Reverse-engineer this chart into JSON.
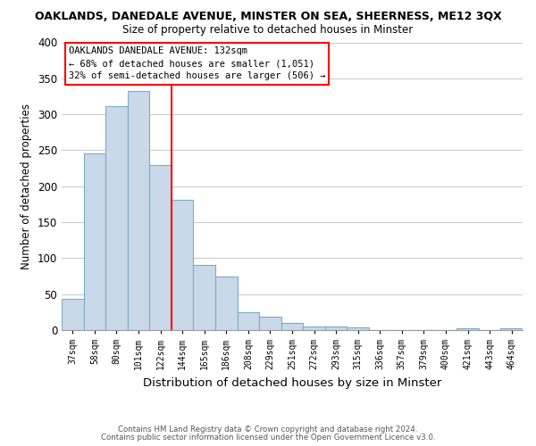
{
  "title_line1": "OAKLANDS, DANEDALE AVENUE, MINSTER ON SEA, SHEERNESS, ME12 3QX",
  "title_line2": "Size of property relative to detached houses in Minster",
  "xlabel": "Distribution of detached houses by size in Minster",
  "ylabel": "Number of detached properties",
  "bin_labels": [
    "37sqm",
    "58sqm",
    "80sqm",
    "101sqm",
    "122sqm",
    "144sqm",
    "165sqm",
    "186sqm",
    "208sqm",
    "229sqm",
    "251sqm",
    "272sqm",
    "293sqm",
    "315sqm",
    "336sqm",
    "357sqm",
    "379sqm",
    "400sqm",
    "421sqm",
    "443sqm",
    "464sqm"
  ],
  "bar_values": [
    44,
    245,
    311,
    333,
    229,
    181,
    90,
    75,
    25,
    18,
    10,
    5,
    5,
    4,
    0,
    0,
    0,
    0,
    3,
    0,
    2
  ],
  "bar_color": "#c9d9ea",
  "bar_edge_color": "#7aacca",
  "vline_x_index": 4,
  "vline_color": "red",
  "ylim": [
    0,
    400
  ],
  "yticks": [
    0,
    50,
    100,
    150,
    200,
    250,
    300,
    350,
    400
  ],
  "annotation_title": "OAKLANDS DANEDALE AVENUE: 132sqm",
  "annotation_line1": "← 68% of detached houses are smaller (1,051)",
  "annotation_line2": "32% of semi-detached houses are larger (506) →",
  "footer_line1": "Contains HM Land Registry data © Crown copyright and database right 2024.",
  "footer_line2": "Contains public sector information licensed under the Open Government Licence v3.0.",
  "bg_color": "#ffffff",
  "grid_color": "#cccccc"
}
